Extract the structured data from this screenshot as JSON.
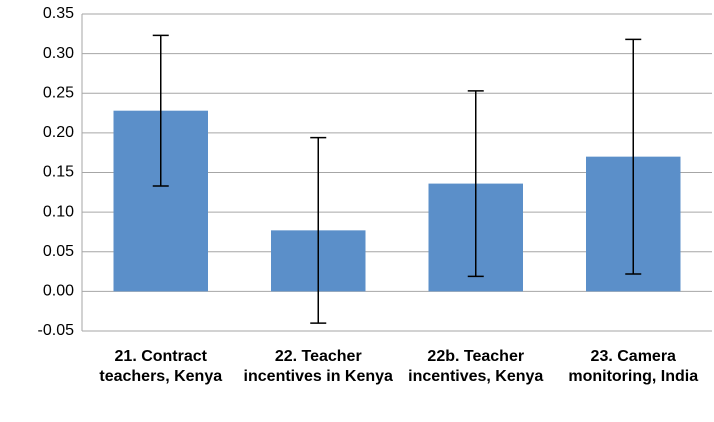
{
  "chart_data": {
    "type": "bar",
    "categories": [
      "21. Contract teachers, Kenya",
      "22. Teacher incentives in Kenya",
      "22b. Teacher incentives, Kenya",
      "23. Camera monitoring, India"
    ],
    "values": [
      0.228,
      0.077,
      0.136,
      0.17
    ],
    "errors": [
      0.095,
      0.117,
      0.117,
      0.148
    ],
    "color": "#5b8fc9",
    "ylim": [
      -0.05,
      0.35
    ],
    "yticks": [
      -0.05,
      {
        "value": 0,
        "label": "0.00"
      },
      0.05,
      {
        "value": 0.1,
        "label": "0.10"
      },
      0.15,
      {
        "value": 0.2,
        "label": "0.20"
      },
      0.25,
      {
        "value": 0.3,
        "label": "0.30"
      },
      0.35
    ],
    "grid": true
  }
}
